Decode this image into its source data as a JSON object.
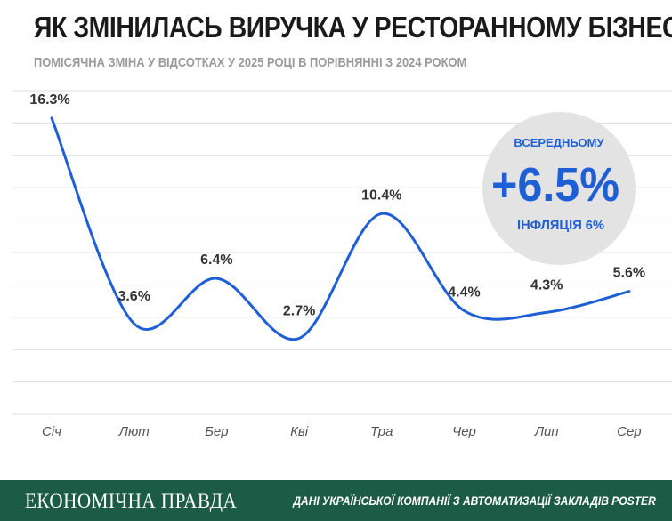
{
  "header": {
    "title": "ЯК ЗМІНИЛАСЬ ВИРУЧКА У РЕСТОРАННОМУ БІЗНЕСІ",
    "subtitle": "ПОМІСЯЧНА ЗМІНА У ВІДСОТКАХ У 2025 РОЦІ В ПОРІВНЯННІ З 2024 РОКОМ"
  },
  "badge": {
    "label": "ВСЕРЕДНЬОМУ",
    "value": "+6.5%",
    "note": "ІНФЛЯЦІЯ 6%"
  },
  "footer": {
    "brand": "ЕКОНОМІЧНА ПРАВДА",
    "source": "ДАНІ УКРАЇНСЬКОЇ КОМПАНІЇ З АВТОМАТИЗАЦІЇ ЗАКЛАДІВ POSTER"
  },
  "colors": {
    "line": "#1f5fd6",
    "badge_text": "#1f5fd6",
    "badge_bg": "#e3e3e3",
    "footer_bg": "#1c5b46",
    "grid": "#dddddd"
  },
  "chart_data": {
    "type": "line",
    "categories": [
      "Січ",
      "Лют",
      "Бер",
      "Кві",
      "Тра",
      "Чер",
      "Лип",
      "Сер"
    ],
    "values": [
      16.3,
      3.6,
      6.4,
      2.7,
      10.4,
      4.4,
      4.3,
      5.6
    ],
    "labels": [
      "16.3%",
      "3.6%",
      "6.4%",
      "2.7%",
      "10.4%",
      "4.4%",
      "4.3%",
      "5.6%"
    ],
    "title": "ЯК ЗМІНИЛАСЬ ВИРУЧКА У РЕСТОРАННОМУ БІЗНЕСІ",
    "xlabel": "",
    "ylabel": "",
    "ylim": [
      -2,
      18
    ],
    "grid": true,
    "legend": "none"
  }
}
